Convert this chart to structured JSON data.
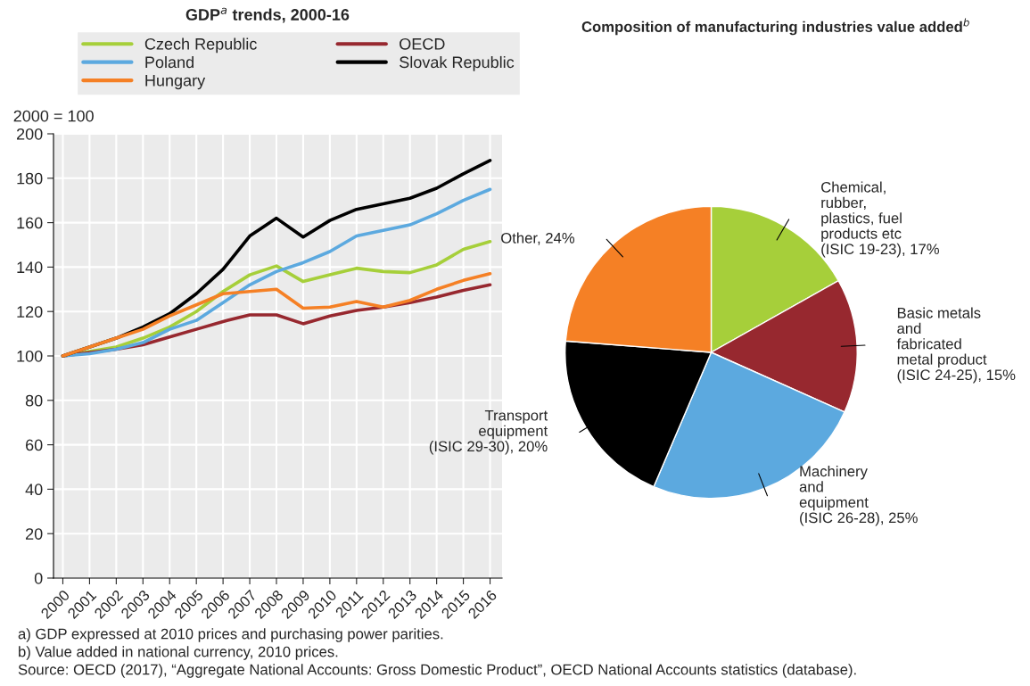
{
  "chart_data": [
    {
      "type": "line",
      "title": "GDP$^{a}$ trends, 2000-16",
      "ylabel": "2000 = 100",
      "categories": [
        "2000",
        "2001",
        "2002",
        "2003",
        "2004",
        "2005",
        "2006",
        "2007",
        "2008",
        "2009",
        "2010",
        "2011",
        "2012",
        "2013",
        "2014",
        "2015",
        "2016"
      ],
      "series": [
        {
          "name": "Czech Republic",
          "color": "#a6cf3a",
          "values": [
            100,
            102,
            104,
            108,
            113,
            120,
            129,
            136.5,
            140.5,
            133.5,
            136.5,
            139.5,
            138,
            137.5,
            141,
            148,
            151.5
          ]
        },
        {
          "name": "OECD",
          "color": "#97282f",
          "values": [
            100,
            101.5,
            103,
            105,
            108.5,
            112,
            115.5,
            118.5,
            118.5,
            114.5,
            118,
            120.5,
            122,
            124,
            126.5,
            129.5,
            132
          ]
        },
        {
          "name": "Poland",
          "color": "#5ca9df",
          "values": [
            100,
            101,
            103,
            106,
            112,
            116,
            124,
            132,
            138,
            142,
            147,
            154,
            156.5,
            159,
            164,
            170,
            175
          ]
        },
        {
          "name": "Slovak Republic",
          "color": "#000000",
          "values": [
            100,
            104,
            108,
            113,
            119,
            128,
            139,
            154,
            162,
            153.5,
            161,
            166,
            168.5,
            171,
            175.5,
            182,
            188
          ]
        },
        {
          "name": "Hungary",
          "color": "#f58025",
          "values": [
            100,
            104,
            108,
            112,
            118,
            123,
            128,
            129,
            130,
            121.5,
            122,
            124.5,
            122,
            125,
            130,
            134,
            137
          ]
        }
      ],
      "ylim": [
        0,
        200
      ],
      "yticks": [
        0,
        20,
        40,
        60,
        80,
        100,
        120,
        140,
        160,
        180,
        200
      ],
      "grid": true,
      "legend": "top",
      "line_style": "solid",
      "marker": "none"
    },
    {
      "type": "pie",
      "title": "Composition of manufacturing industries value added$^{b}$",
      "categories": [
        "Chemical,\nrubber,\nplastics, fuel\nproducts etc\n(ISIC 19-23)",
        "Basic metals\nand\nfabricated\nmetal product\n(ISIC 24-25)",
        "Machinery\nand\nequipment\n(ISIC 26-28)",
        "Transport\nequipment\n(ISIC 29-30)",
        "Other"
      ],
      "values": [
        17,
        15,
        25,
        20,
        24
      ],
      "value_labels": [
        "17%",
        "15%",
        "25%",
        "20%",
        "24%"
      ],
      "colors": [
        "#a6cf3a",
        "#97282f",
        "#5ca9df",
        "#000000",
        "#f58025"
      ],
      "annotations": [
        "a) GDP expressed at 2010 prices and purchasing power parities.",
        "b) Value added in national currency, 2010 prices.",
        "Source: OECD (2017), “Aggregate National Accounts: Gross Domestic Product”, OECD National Accounts statistics (database)."
      ]
    }
  ]
}
